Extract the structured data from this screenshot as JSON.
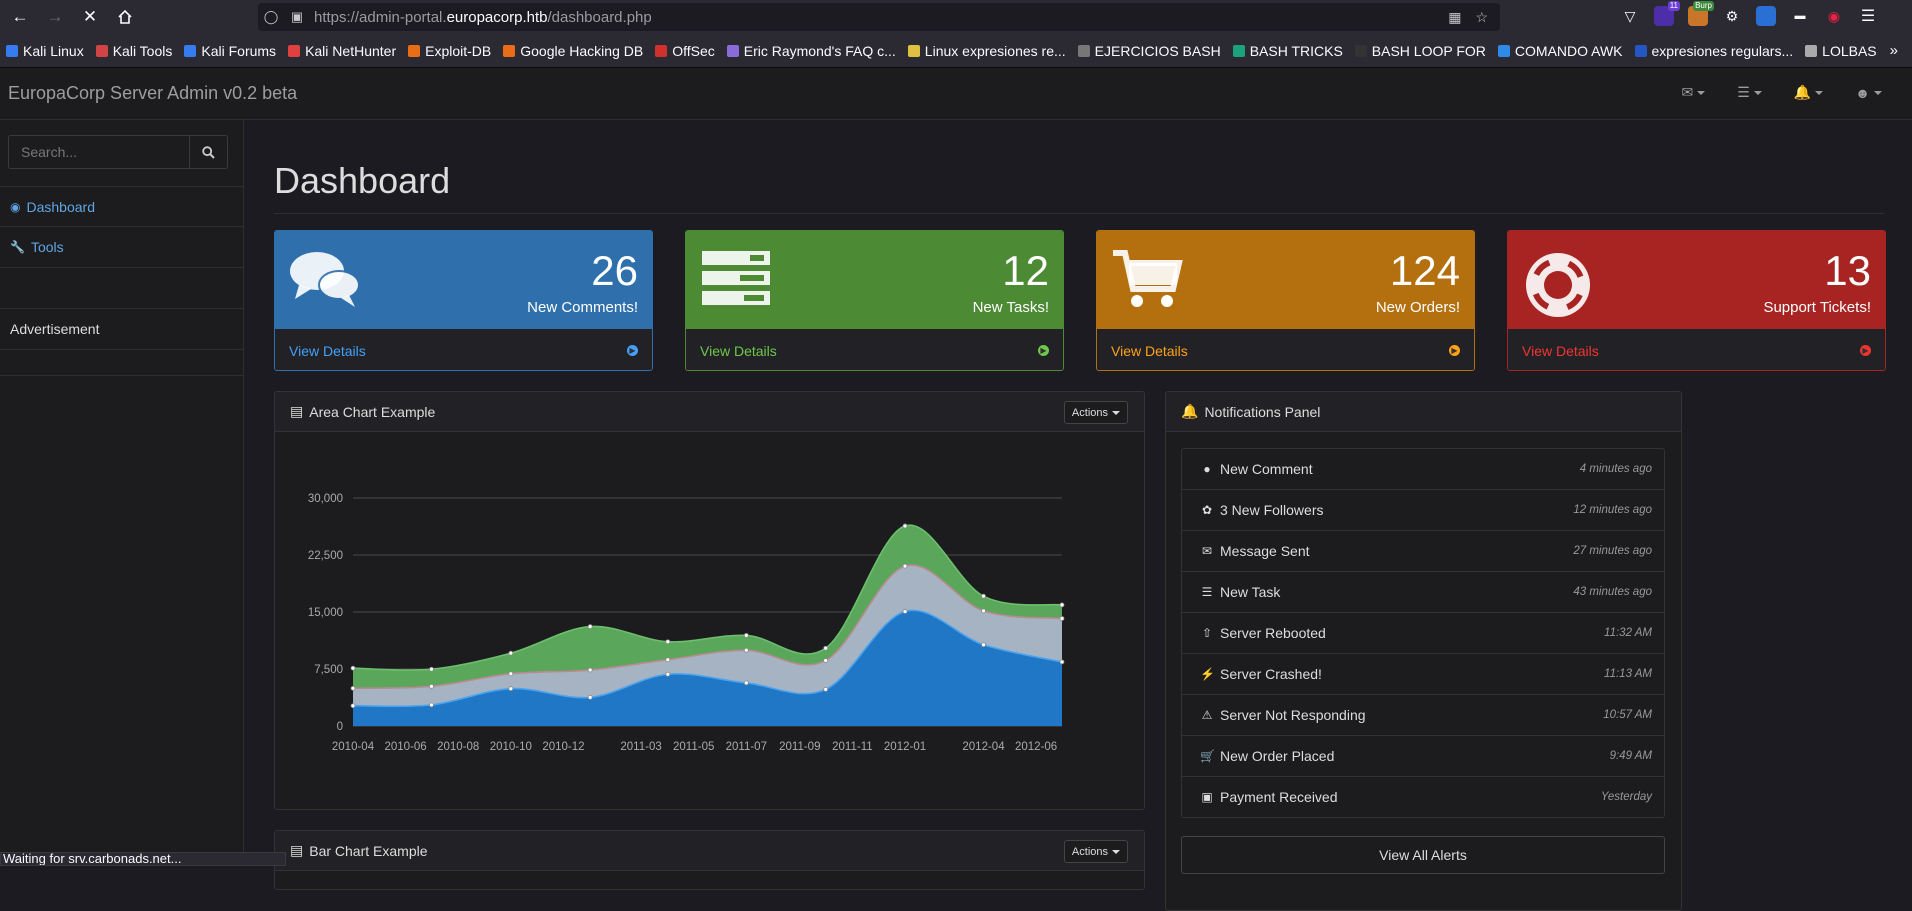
{
  "browser": {
    "url_prefix": "https://admin-portal.",
    "url_domain": "europacorp.htb",
    "url_path": "/dashboard.php",
    "status_text": "Waiting for srv.carbonads.net...",
    "extension_badge": "11",
    "extension_burp_label": "Burp",
    "bookmarks": [
      {
        "label": "Kali Linux",
        "color": "#367bf0"
      },
      {
        "label": "Kali Tools",
        "color": "#d24345"
      },
      {
        "label": "Kali Forums",
        "color": "#367bf0"
      },
      {
        "label": "Kali NetHunter",
        "color": "#e04040"
      },
      {
        "label": "Exploit-DB",
        "color": "#e96d16"
      },
      {
        "label": "Google Hacking DB",
        "color": "#e96d16"
      },
      {
        "label": "OffSec",
        "color": "#d0312d"
      },
      {
        "label": "Eric Raymond's FAQ c...",
        "color": "#8a6cd8"
      },
      {
        "label": "Linux expresiones re...",
        "color": "#e0c040"
      },
      {
        "label": "EJERCICIOS BASH",
        "color": "#777"
      },
      {
        "label": "BASH TRICKS",
        "color": "#1aa37a"
      },
      {
        "label": "BASH LOOP FOR",
        "color": "#333"
      },
      {
        "label": "COMANDO AWK",
        "color": "#2e8ae6"
      },
      {
        "label": "expresiones regulars...",
        "color": "#2456c4"
      },
      {
        "label": "LOLBAS",
        "color": "#aaa"
      }
    ]
  },
  "app": {
    "brand": "EuropaCorp Server Admin v0.2 beta",
    "nav_icons": [
      "envelope-icon",
      "tasks-icon",
      "bell-icon",
      "user-icon"
    ]
  },
  "sidebar": {
    "search_placeholder": "Search...",
    "items": [
      {
        "label": "Dashboard",
        "icon": "dashboard-icon"
      },
      {
        "label": "Tools",
        "icon": "wrench-icon"
      }
    ],
    "advertisement": "Advertisement"
  },
  "main": {
    "title": "Dashboard",
    "cards": [
      {
        "value": "26",
        "label": "New Comments!",
        "link": "View Details",
        "color": "#2e6fac",
        "icon": "comments-icon"
      },
      {
        "value": "12",
        "label": "New Tasks!",
        "link": "View Details",
        "color": "#4c8a33",
        "icon": "tasks-icon"
      },
      {
        "value": "124",
        "label": "New Orders!",
        "link": "View Details",
        "color": "#b4700f",
        "icon": "shopping-cart-icon"
      },
      {
        "value": "13",
        "label": "Support Tickets!",
        "link": "View Details",
        "color": "#a72422",
        "icon": "support-icon"
      }
    ],
    "area_chart_title": "Area Chart Example",
    "bar_chart_title": "Bar Chart Example",
    "actions_label": "Actions",
    "notifications_title": "Notifications Panel",
    "view_all": "View All Alerts",
    "notifications": [
      {
        "label": "New Comment",
        "time": "4 minutes ago",
        "icon": "comment-icon"
      },
      {
        "label": "3 New Followers",
        "time": "12 minutes ago",
        "icon": "twitter-icon"
      },
      {
        "label": "Message Sent",
        "time": "27 minutes ago",
        "icon": "envelope-icon"
      },
      {
        "label": "New Task",
        "time": "43 minutes ago",
        "icon": "tasks-icon"
      },
      {
        "label": "Server Rebooted",
        "time": "11:32 AM",
        "icon": "upload-icon"
      },
      {
        "label": "Server Crashed!",
        "time": "11:13 AM",
        "icon": "bolt-icon"
      },
      {
        "label": "Server Not Responding",
        "time": "10:57 AM",
        "icon": "warning-icon"
      },
      {
        "label": "New Order Placed",
        "time": "9:49 AM",
        "icon": "shopping-cart-icon"
      },
      {
        "label": "Payment Received",
        "time": "Yesterday",
        "icon": "money-icon"
      }
    ]
  },
  "chart_data": {
    "type": "area",
    "stacked": true,
    "x": [
      "2010-04-01",
      "2010-07-01",
      "2010-10-01",
      "2011-01-01",
      "2011-04-01",
      "2011-07-01",
      "2011-10-01",
      "2012-01-01",
      "2012-04-01",
      "2012-07-01"
    ],
    "xticks": [
      "2010-04",
      "2010-06",
      "2010-08",
      "2010-10",
      "2010-12",
      "2011-03",
      "2011-05",
      "2011-07",
      "2011-09",
      "2011-11",
      "2012-01",
      "2012-04",
      "2012-06"
    ],
    "ylim": [
      0,
      30000
    ],
    "yticks": [
      "0",
      "7,500",
      "15,000",
      "22,500",
      "30,000"
    ],
    "series": [
      {
        "values": [
          2666,
          2778,
          4912,
          3767,
          6810,
          5670,
          4820,
          15073,
          10687,
          8432
        ],
        "color": "#1f77c5"
      },
      {
        "values": [
          2294,
          2441,
          1969,
          3597,
          1914,
          4293,
          3795,
          5967,
          4460,
          5713
        ],
        "color": "#a6b3c2"
      },
      {
        "values": [
          2647,
          2251,
          2702,
          5717,
          2366,
          1962,
          1620,
          5284,
          1934,
          1790
        ],
        "color": "#5aa65a"
      }
    ],
    "grid": true
  }
}
